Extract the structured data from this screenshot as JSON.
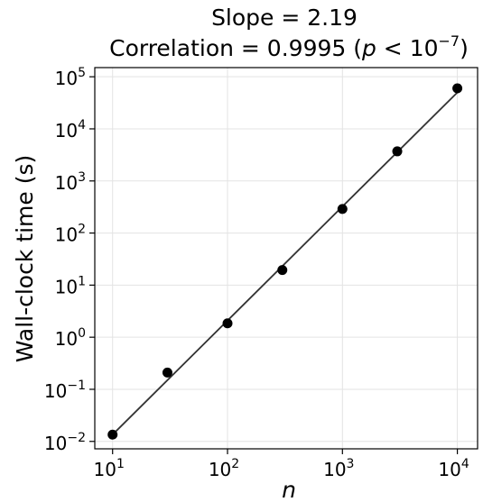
{
  "chart_data": {
    "type": "scatter",
    "title_line1": "Slope = 2.19",
    "title_line2_prefix": "Correlation = 0.9995 (",
    "title_line2_p": "p",
    "title_line2_lt": " < 10",
    "title_line2_exp": "−7",
    "title_line2_suffix": ")",
    "xlabel": "n",
    "ylabel": "Wall-clock time (s)",
    "x_scale": "log",
    "y_scale": "log",
    "xlim": [
      7,
      15000
    ],
    "ylim": [
      0.0072,
      150000
    ],
    "grid": true,
    "x_ticks": [
      {
        "value": 10,
        "base": "10",
        "exp": "1"
      },
      {
        "value": 100,
        "base": "10",
        "exp": "2"
      },
      {
        "value": 1000,
        "base": "10",
        "exp": "3"
      },
      {
        "value": 10000,
        "base": "10",
        "exp": "4"
      }
    ],
    "y_ticks": [
      {
        "value": 0.01,
        "base": "10",
        "exp": "−2"
      },
      {
        "value": 0.1,
        "base": "10",
        "exp": "−1"
      },
      {
        "value": 1,
        "base": "10",
        "exp": "0"
      },
      {
        "value": 10,
        "base": "10",
        "exp": "1"
      },
      {
        "value": 100,
        "base": "10",
        "exp": "2"
      },
      {
        "value": 1000,
        "base": "10",
        "exp": "3"
      },
      {
        "value": 10000,
        "base": "10",
        "exp": "4"
      },
      {
        "value": 100000,
        "base": "10",
        "exp": "5"
      }
    ],
    "series": [
      {
        "x": [
          10,
          30,
          100,
          300,
          1000,
          3000,
          10000
        ],
        "y": [
          0.0135,
          0.21,
          1.85,
          19.5,
          290,
          3700,
          60000
        ],
        "color": "#000000"
      }
    ],
    "fit_line": {
      "x": [
        10,
        10000
      ],
      "y": [
        0.0135,
        50000
      ],
      "color": "#333333"
    }
  }
}
